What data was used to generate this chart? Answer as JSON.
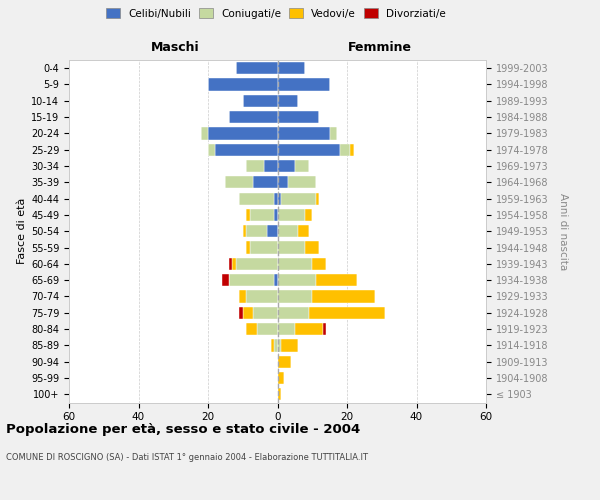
{
  "age_groups": [
    "100+",
    "95-99",
    "90-94",
    "85-89",
    "80-84",
    "75-79",
    "70-74",
    "65-69",
    "60-64",
    "55-59",
    "50-54",
    "45-49",
    "40-44",
    "35-39",
    "30-34",
    "25-29",
    "20-24",
    "15-19",
    "10-14",
    "5-9",
    "0-4"
  ],
  "birth_years": [
    "≤ 1903",
    "1904-1908",
    "1909-1913",
    "1914-1918",
    "1919-1923",
    "1924-1928",
    "1929-1933",
    "1934-1938",
    "1939-1943",
    "1944-1948",
    "1949-1953",
    "1954-1958",
    "1959-1963",
    "1964-1968",
    "1969-1973",
    "1974-1978",
    "1979-1983",
    "1984-1988",
    "1989-1993",
    "1994-1998",
    "1999-2003"
  ],
  "maschi_celibe": [
    0,
    0,
    0,
    0,
    0,
    0,
    0,
    1,
    0,
    0,
    3,
    1,
    1,
    7,
    4,
    18,
    20,
    14,
    10,
    20,
    12
  ],
  "maschi_coniugato": [
    0,
    0,
    0,
    1,
    6,
    7,
    9,
    13,
    12,
    8,
    6,
    7,
    10,
    8,
    5,
    2,
    2,
    0,
    0,
    0,
    0
  ],
  "maschi_vedovo": [
    0,
    0,
    0,
    1,
    3,
    3,
    2,
    0,
    1,
    1,
    1,
    1,
    0,
    0,
    0,
    0,
    0,
    0,
    0,
    0,
    0
  ],
  "maschi_divorziato": [
    0,
    0,
    0,
    0,
    0,
    1,
    0,
    2,
    1,
    0,
    0,
    0,
    0,
    0,
    0,
    0,
    0,
    0,
    0,
    0,
    0
  ],
  "femmine_celibe": [
    0,
    0,
    0,
    0,
    0,
    0,
    0,
    0,
    0,
    0,
    0,
    0,
    1,
    3,
    5,
    18,
    15,
    12,
    6,
    15,
    8
  ],
  "femmine_coniugata": [
    0,
    0,
    0,
    1,
    5,
    9,
    10,
    11,
    10,
    8,
    6,
    8,
    10,
    8,
    4,
    3,
    2,
    0,
    0,
    0,
    0
  ],
  "femmine_vedova": [
    1,
    2,
    4,
    5,
    8,
    22,
    18,
    12,
    4,
    4,
    3,
    2,
    1,
    0,
    0,
    1,
    0,
    0,
    0,
    0,
    0
  ],
  "femmine_divorziata": [
    0,
    0,
    0,
    0,
    1,
    0,
    0,
    0,
    0,
    0,
    0,
    0,
    0,
    0,
    0,
    0,
    0,
    0,
    0,
    0,
    0
  ],
  "color_celibe": "#4472c4",
  "color_coniugato": "#c5d9a0",
  "color_vedovo": "#ffc000",
  "color_divorziato": "#c00000",
  "title": "Popolazione per età, sesso e stato civile - 2004",
  "subtitle": "COMUNE DI ROSCIGNO (SA) - Dati ISTAT 1° gennaio 2004 - Elaborazione TUTTITALIA.IT",
  "xlabel_left": "Maschi",
  "xlabel_right": "Femmine",
  "ylabel_left": "Fasce di età",
  "ylabel_right": "Anni di nascita",
  "xlim": 60,
  "background_color": "#f0f0f0",
  "plot_bg_color": "#ffffff"
}
